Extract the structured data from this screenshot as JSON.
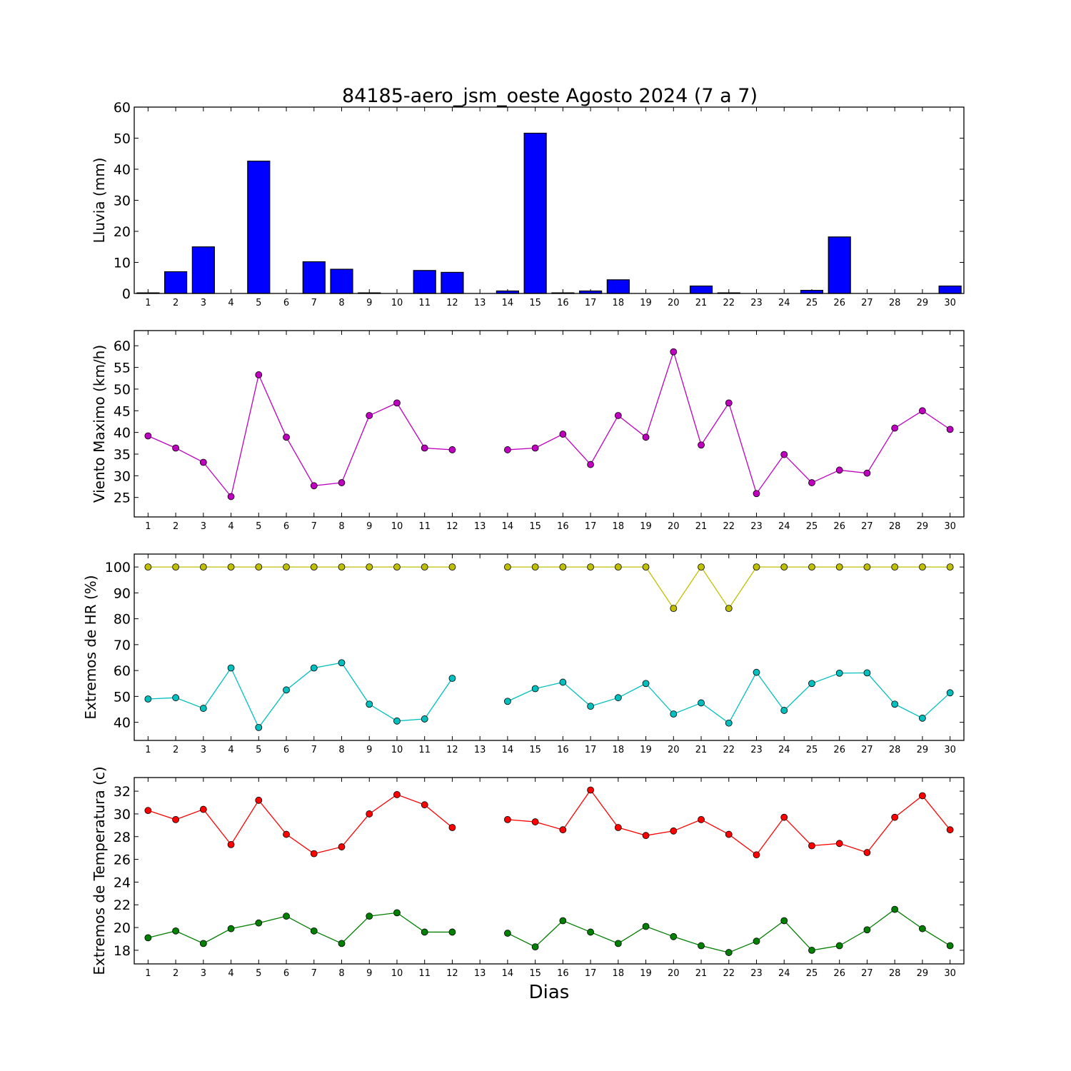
{
  "title": "84185-aero_jsm_oeste Agosto 2024  (7 a 7)",
  "xlabel": "Dias",
  "chart_data": [
    {
      "type": "bar",
      "ylabel": "Lluvia (mm)",
      "ylim": [
        0,
        60
      ],
      "yticks": [
        0,
        10,
        20,
        30,
        40,
        50,
        60
      ],
      "x": [
        1,
        2,
        3,
        4,
        5,
        6,
        7,
        8,
        9,
        10,
        11,
        12,
        13,
        14,
        15,
        16,
        17,
        18,
        19,
        20,
        21,
        22,
        23,
        24,
        25,
        26,
        27,
        28,
        29,
        30
      ],
      "series": [
        {
          "color": "#0000ff",
          "values": [
            0.2,
            7.0,
            15.0,
            0,
            42.6,
            0,
            10.2,
            7.8,
            0.2,
            0,
            7.4,
            6.8,
            null,
            0.8,
            51.6,
            0.2,
            0.8,
            4.4,
            0,
            0,
            2.4,
            0.2,
            0,
            0,
            1.0,
            18.2,
            0,
            0,
            0,
            2.4
          ]
        }
      ]
    },
    {
      "type": "line",
      "ylabel": "Viento Maximo (km/h)",
      "ylim": [
        20.5,
        63.5
      ],
      "yticks": [
        25,
        30,
        35,
        40,
        45,
        50,
        55,
        60
      ],
      "x": [
        1,
        2,
        3,
        4,
        5,
        6,
        7,
        8,
        9,
        10,
        11,
        12,
        13,
        14,
        15,
        16,
        17,
        18,
        19,
        20,
        21,
        22,
        23,
        24,
        25,
        26,
        27,
        28,
        29,
        30
      ],
      "series": [
        {
          "color": "#bf00bf",
          "values": [
            39.2,
            36.4,
            33.1,
            25.2,
            53.3,
            38.9,
            27.7,
            28.4,
            43.9,
            46.8,
            36.4,
            36.0,
            null,
            36.0,
            36.4,
            39.6,
            32.6,
            43.9,
            38.9,
            58.6,
            37.1,
            46.8,
            25.9,
            34.9,
            28.4,
            31.3,
            30.6,
            41.0,
            45.0,
            40.7
          ]
        }
      ]
    },
    {
      "type": "line",
      "ylabel": "Extremos de HR (%)",
      "ylim": [
        33,
        105
      ],
      "yticks": [
        40,
        50,
        60,
        70,
        80,
        90,
        100
      ],
      "x": [
        1,
        2,
        3,
        4,
        5,
        6,
        7,
        8,
        9,
        10,
        11,
        12,
        13,
        14,
        15,
        16,
        17,
        18,
        19,
        20,
        21,
        22,
        23,
        24,
        25,
        26,
        27,
        28,
        29,
        30
      ],
      "series": [
        {
          "color": "#bfbf00",
          "values": [
            100,
            100,
            100,
            100,
            100,
            100,
            100,
            100,
            100,
            100,
            100,
            100,
            null,
            100,
            100,
            100,
            100,
            100,
            100,
            84,
            100,
            84,
            100,
            100,
            100,
            100,
            100,
            100,
            100,
            100
          ]
        },
        {
          "color": "#00bfbf",
          "values": [
            49,
            49.5,
            45.4,
            61,
            38,
            52.5,
            61,
            63,
            47,
            40.5,
            41.3,
            57,
            null,
            48.1,
            53,
            55.5,
            46.2,
            49.5,
            55,
            43.2,
            47.5,
            39.7,
            59.3,
            44.6,
            55,
            59,
            59.1,
            47,
            41.6,
            51.4
          ]
        }
      ]
    },
    {
      "type": "line",
      "ylabel": "Extremos de Temperatura (c)",
      "ylim": [
        16.8,
        33.2
      ],
      "yticks": [
        18,
        20,
        22,
        24,
        26,
        28,
        30,
        32
      ],
      "x": [
        1,
        2,
        3,
        4,
        5,
        6,
        7,
        8,
        9,
        10,
        11,
        12,
        13,
        14,
        15,
        16,
        17,
        18,
        19,
        20,
        21,
        22,
        23,
        24,
        25,
        26,
        27,
        28,
        29,
        30
      ],
      "series": [
        {
          "color": "#ff0000",
          "values": [
            30.3,
            29.5,
            30.4,
            27.3,
            31.2,
            28.2,
            26.5,
            27.1,
            30.0,
            31.7,
            30.8,
            28.8,
            null,
            29.5,
            29.3,
            28.6,
            32.1,
            28.8,
            28.1,
            28.5,
            29.5,
            28.2,
            26.4,
            29.7,
            27.2,
            27.4,
            26.6,
            29.7,
            31.6,
            28.6
          ]
        },
        {
          "color": "#008000",
          "values": [
            19.1,
            19.7,
            18.6,
            19.9,
            20.4,
            21.0,
            19.7,
            18.6,
            21.0,
            21.3,
            19.6,
            19.6,
            null,
            19.5,
            18.3,
            20.6,
            19.6,
            18.6,
            20.1,
            19.2,
            18.4,
            17.8,
            18.8,
            20.6,
            18.0,
            18.4,
            19.8,
            21.6,
            19.9,
            18.4
          ]
        }
      ]
    }
  ]
}
